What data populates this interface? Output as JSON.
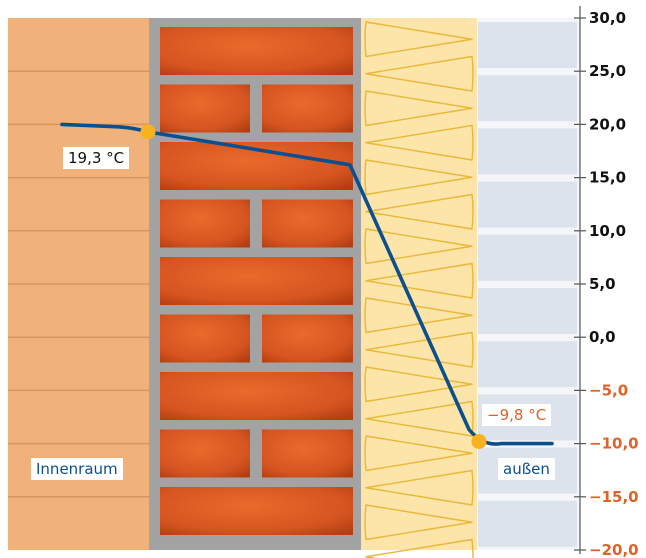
{
  "chart_data": {
    "type": "line",
    "title": "",
    "ylabel": "",
    "xlabel": "",
    "ylim": [
      -20,
      30
    ],
    "y_ticks": [
      "30,0",
      "25,0",
      "20,0",
      "15,0",
      "10,0",
      "5,0",
      "0,0",
      "−5,0",
      "−10,0",
      "−15,0",
      "−20,0"
    ],
    "y_tick_values": [
      30,
      25,
      20,
      15,
      10,
      5,
      0,
      -5,
      -10,
      -15,
      -20
    ],
    "series": [
      {
        "values": [
          20.0,
          19.8,
          19.3,
          16.2,
          -9.8,
          -10.0
        ]
      }
    ],
    "markers": [
      {
        "label": "19,3 °C",
        "value": 19.3
      },
      {
        "label": "−9,8 °C",
        "value": -9.8
      }
    ],
    "zones": [
      {
        "label": "Innenraum"
      },
      {
        "label": ""
      },
      {
        "label": ""
      },
      {
        "label": "außen"
      }
    ],
    "colors": {
      "line": "#0d4f8c",
      "marker": "#f7b21e",
      "positive_tick": "#111111",
      "negative_tick": "#e0622a",
      "inner_plaster": "#f0b27a",
      "mortar": "#a3a3a3",
      "brick": "#d9531e",
      "insulation": "#fde4a8",
      "outer_cladding": "#dde3ec"
    }
  }
}
